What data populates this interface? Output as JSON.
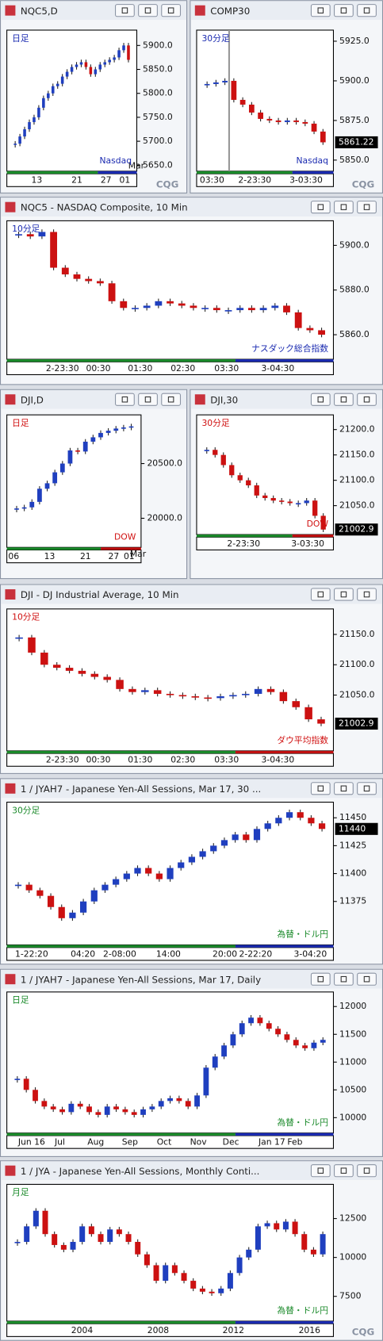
{
  "logo": "CQG",
  "up_color": "#1f3fbf",
  "down_color": "#cc1111",
  "windows": [
    {
      "title": "NQC5,D",
      "period": "日足",
      "index_name": "Nasdaq",
      "month_label": "Mar",
      "ylim": [
        5637.5,
        5932
      ],
      "yticks": [
        {
          "value": 5900,
          "label": "5900.0"
        },
        {
          "value": 5850,
          "label": "5850.0"
        },
        {
          "value": 5800,
          "label": "5800.0"
        },
        {
          "value": 5750,
          "label": "5750.0"
        },
        {
          "value": 5700,
          "label": "5700.0"
        },
        {
          "value": 5650,
          "label": "5650.0"
        }
      ],
      "xlabels": [
        "13",
        "21",
        "27",
        "01"
      ],
      "closes": [
        5695,
        5710,
        5725,
        5740,
        5750,
        5770,
        5790,
        5800,
        5815,
        5820,
        5835,
        5845,
        5855,
        5860,
        5865,
        5855,
        5840,
        5850,
        5860,
        5865,
        5870,
        5875,
        5890,
        5900,
        5870
      ]
    },
    {
      "title": "COMP30",
      "period": "30分足",
      "index_name": "Nasdaq",
      "last": 5861.22,
      "ylim": [
        5843,
        5932
      ],
      "yticks": [
        {
          "value": 5925,
          "label": "5925.0"
        },
        {
          "value": 5900,
          "label": "5900.0"
        },
        {
          "value": 5875,
          "label": "5875.0"
        },
        {
          "value": 5850,
          "label": "5850.0"
        }
      ],
      "xlabels": [
        "03:30",
        "2-23:30",
        "3-03:30"
      ],
      "closes": [
        5898,
        5899,
        5900,
        5888,
        5885,
        5880,
        5876,
        5875,
        5874,
        5875,
        5874,
        5873,
        5868,
        5861.22
      ]
    },
    {
      "title": "NQC5 - NASDAQ Composite, 10 Min",
      "period": "10分足",
      "index_name": "ナスダック総合指数",
      "ylim": [
        5849,
        5911
      ],
      "yticks": [
        {
          "value": 5900,
          "label": "5900.0"
        },
        {
          "value": 5880,
          "label": "5880.0"
        },
        {
          "value": 5860,
          "label": "5860.0"
        }
      ],
      "xlabels": [
        "2-23:30",
        "00:30",
        "01:30",
        "02:30",
        "03:30",
        "3-04:30"
      ],
      "closes": [
        5905,
        5904,
        5906,
        5890,
        5887,
        5885,
        5884,
        5883,
        5875,
        5872,
        5872,
        5873,
        5875,
        5874,
        5873,
        5872,
        5872,
        5871,
        5871,
        5872,
        5871,
        5872,
        5873,
        5870,
        5863,
        5862,
        5860
      ]
    },
    {
      "title": "DJI,D",
      "period": "日足",
      "index_name": "DOW",
      "month_label": "Mar",
      "ylim": [
        19734,
        20945
      ],
      "yticks": [
        {
          "value": 20500,
          "label": "20500.0"
        },
        {
          "value": 20000,
          "label": "20000.0"
        }
      ],
      "xlabels": [
        "06",
        "13",
        "21",
        "27",
        "01"
      ],
      "closes": [
        20090,
        20100,
        20150,
        20270,
        20320,
        20420,
        20500,
        20620,
        20610,
        20700,
        20740,
        20780,
        20800,
        20820,
        20830,
        20840
      ]
    },
    {
      "title": "DJI,30",
      "period": "30分足",
      "index_name": "DOW",
      "last": 21002.9,
      "ylim": [
        20993,
        21229
      ],
      "yticks": [
        {
          "value": 21200,
          "label": "21200.0"
        },
        {
          "value": 21150,
          "label": "21150.0"
        },
        {
          "value": 21100,
          "label": "21100.0"
        },
        {
          "value": 21050,
          "label": "21050.0"
        }
      ],
      "xlabels": [
        "2-23:30",
        "3-03:30"
      ],
      "closes": [
        21160,
        21150,
        21130,
        21110,
        21100,
        21090,
        21070,
        21065,
        21060,
        21058,
        21055,
        21055,
        21060,
        21030,
        21002.9
      ]
    },
    {
      "title": "DJI - DJ Industrial Average, 10 Min",
      "period": "10分足",
      "index_name": "ダウ平均指数",
      "last": 21002.9,
      "ylim": [
        20958,
        21192
      ],
      "yticks": [
        {
          "value": 21150,
          "label": "21150.0"
        },
        {
          "value": 21100,
          "label": "21100.0"
        },
        {
          "value": 21050,
          "label": "21050.0"
        }
      ],
      "xlabels": [
        "2-23:30",
        "00:30",
        "01:30",
        "02:30",
        "03:30",
        "3-04:30"
      ],
      "closes": [
        21145,
        21120,
        21100,
        21095,
        21090,
        21085,
        21080,
        21075,
        21060,
        21055,
        21058,
        21052,
        21050,
        21048,
        21046,
        21045,
        21048,
        21050,
        21052,
        21060,
        21055,
        21040,
        21030,
        21010,
        21002.9
      ]
    },
    {
      "title": "1 / JYAH7 - Japanese Yen-All Sessions, Mar 17, 30 ...",
      "period": "30分足",
      "index_name": "為替・ドル円",
      "last": 11440,
      "ylim": [
        11336,
        11464
      ],
      "yticks": [
        11450,
        11425,
        11400,
        11375
      ],
      "xlabels": [
        "1-22:20",
        "04:20",
        "2-08:00",
        "14:00",
        "20:00",
        "2-22:20",
        "3-04:20"
      ],
      "closes": [
        11390,
        11385,
        11380,
        11370,
        11360,
        11365,
        11375,
        11385,
        11390,
        11395,
        11400,
        11405,
        11400,
        11395,
        11405,
        11410,
        11415,
        11420,
        11425,
        11430,
        11435,
        11430,
        11440,
        11445,
        11450,
        11455,
        11450,
        11445,
        11440
      ]
    },
    {
      "title": "1 / JYAH7 - Japanese Yen-All Sessions, Mar 17, Daily",
      "period": "日足",
      "index_name": "為替・ドル円",
      "ylim": [
        9723,
        12262
      ],
      "yticks": [
        12000,
        11500,
        11000,
        10500,
        10000
      ],
      "xlabels": [
        "Jun 16",
        "Jul",
        "Aug",
        "Sep",
        "Oct",
        "Nov",
        "Dec",
        "Jan 17",
        "Feb"
      ],
      "closes": [
        10700,
        10500,
        10300,
        10200,
        10150,
        10100,
        10250,
        10200,
        10100,
        10050,
        10200,
        10150,
        10100,
        10050,
        10150,
        10200,
        10300,
        10350,
        10300,
        10200,
        10400,
        10900,
        11100,
        11300,
        11500,
        11700,
        11800,
        11700,
        11600,
        11500,
        11400,
        11300,
        11250,
        11350,
        11400
      ]
    },
    {
      "title": "1 / JYA - Japanese Yen-All Sessions, Monthly Conti...",
      "period": "月足",
      "index_name": "為替・ドル円",
      "ylim": [
        5907,
        14698
      ],
      "yticks": [
        12500,
        10000,
        7500
      ],
      "xlabels": [
        "2004",
        "2008",
        "2012",
        "2016"
      ],
      "closes": [
        11000,
        12000,
        13000,
        11500,
        10800,
        10500,
        11000,
        12000,
        11500,
        11000,
        11800,
        11500,
        11000,
        10200,
        9500,
        8500,
        9500,
        9000,
        8500,
        8000,
        7800,
        7700,
        8000,
        9000,
        10000,
        10500,
        12000,
        12200,
        11800,
        12300,
        11500,
        10500,
        10200,
        11500
      ]
    }
  ]
}
